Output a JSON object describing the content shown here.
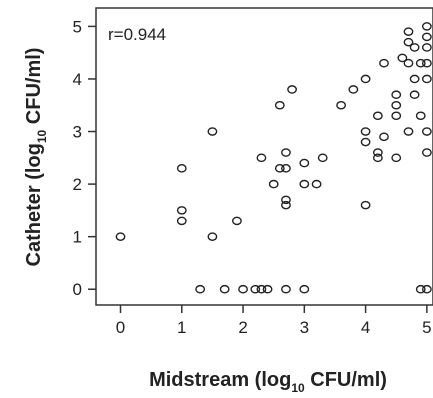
{
  "chart_data": {
    "type": "scatter",
    "title": "",
    "xlabel": "Midstream (log10 CFU/ml)",
    "ylabel": "Catheter (log10 CFU/ml)",
    "xlabel_parts": {
      "pre": "Midstream (log",
      "sub": "10",
      "post": " CFU/ml)"
    },
    "ylabel_parts": {
      "pre": "Catheter (log",
      "sub": "10",
      "post": " CFU/ml)"
    },
    "annotation": "r=0.944",
    "xlim": [
      -0.4,
      5.1
    ],
    "ylim": [
      -0.3,
      5.35
    ],
    "x_ticks": [
      0,
      1,
      2,
      3,
      4,
      5
    ],
    "y_ticks": [
      0,
      1,
      2,
      3,
      4,
      5
    ],
    "x_tick_labels": [
      "0",
      "1",
      "2",
      "3",
      "4",
      "5"
    ],
    "y_tick_labels": [
      "0",
      "1",
      "2",
      "3",
      "4",
      "5"
    ],
    "legend": "none",
    "grid": false,
    "points": [
      {
        "x": 0,
        "y": 1
      },
      {
        "x": 1,
        "y": 2.3
      },
      {
        "x": 1,
        "y": 1.5
      },
      {
        "x": 1,
        "y": 1.3
      },
      {
        "x": 1.3,
        "y": 0
      },
      {
        "x": 1.5,
        "y": 3
      },
      {
        "x": 1.5,
        "y": 1
      },
      {
        "x": 1.7,
        "y": 0
      },
      {
        "x": 1.9,
        "y": 1.3
      },
      {
        "x": 2,
        "y": 0
      },
      {
        "x": 2.2,
        "y": 0
      },
      {
        "x": 2.3,
        "y": 0
      },
      {
        "x": 2.3,
        "y": 2.5
      },
      {
        "x": 2.4,
        "y": 0
      },
      {
        "x": 2.5,
        "y": 2
      },
      {
        "x": 2.6,
        "y": 2.3
      },
      {
        "x": 2.6,
        "y": 3.5
      },
      {
        "x": 2.7,
        "y": 2.6
      },
      {
        "x": 2.7,
        "y": 2.3
      },
      {
        "x": 2.7,
        "y": 1.7
      },
      {
        "x": 2.7,
        "y": 1.6
      },
      {
        "x": 2.8,
        "y": 3.8
      },
      {
        "x": 2.7,
        "y": 0
      },
      {
        "x": 3,
        "y": 2.4
      },
      {
        "x": 3,
        "y": 2
      },
      {
        "x": 3,
        "y": 0
      },
      {
        "x": 3.2,
        "y": 2
      },
      {
        "x": 3.3,
        "y": 2.5
      },
      {
        "x": 3.6,
        "y": 3.5
      },
      {
        "x": 3.8,
        "y": 3.8
      },
      {
        "x": 4,
        "y": 4
      },
      {
        "x": 4,
        "y": 3
      },
      {
        "x": 4,
        "y": 2.8
      },
      {
        "x": 4,
        "y": 1.6
      },
      {
        "x": 4.2,
        "y": 3.3
      },
      {
        "x": 4.2,
        "y": 2.6
      },
      {
        "x": 4.2,
        "y": 2.5
      },
      {
        "x": 4.3,
        "y": 4.3
      },
      {
        "x": 4.3,
        "y": 2.9
      },
      {
        "x": 4.5,
        "y": 3.7
      },
      {
        "x": 4.5,
        "y": 3.5
      },
      {
        "x": 4.5,
        "y": 3.3
      },
      {
        "x": 4.5,
        "y": 2.5
      },
      {
        "x": 4.6,
        "y": 4.4
      },
      {
        "x": 4.7,
        "y": 4.9
      },
      {
        "x": 4.7,
        "y": 4.7
      },
      {
        "x": 4.7,
        "y": 4.3
      },
      {
        "x": 4.7,
        "y": 3
      },
      {
        "x": 4.8,
        "y": 4
      },
      {
        "x": 4.8,
        "y": 3.7
      },
      {
        "x": 4.8,
        "y": 4.6
      },
      {
        "x": 4.9,
        "y": 4.3
      },
      {
        "x": 4.9,
        "y": 3.3
      },
      {
        "x": 4.9,
        "y": 0
      },
      {
        "x": 5,
        "y": 5
      },
      {
        "x": 5,
        "y": 4.8
      },
      {
        "x": 5,
        "y": 4.6
      },
      {
        "x": 5,
        "y": 4.3
      },
      {
        "x": 5,
        "y": 4
      },
      {
        "x": 5,
        "y": 3
      },
      {
        "x": 5,
        "y": 2.6
      },
      {
        "x": 5,
        "y": 0
      }
    ]
  }
}
